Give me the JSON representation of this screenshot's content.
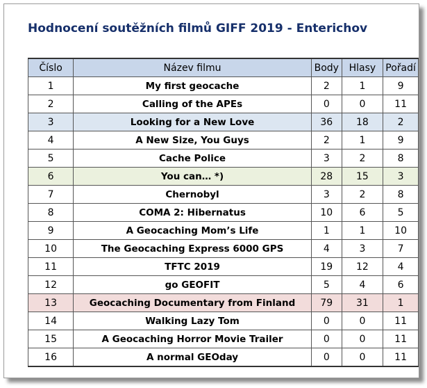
{
  "title": "Hodnocení soutěžních filmů GIFF 2019 - Enterichov",
  "table": {
    "headers": [
      "Číslo",
      "Název filmu",
      "Body",
      "Hlasy",
      "Pořadí"
    ],
    "rows": [
      {
        "cislo": "1",
        "nazev": "My first geocache",
        "body": "2",
        "hlasy": "1",
        "poradi": "9",
        "highlight": ""
      },
      {
        "cislo": "2",
        "nazev": "Calling of the APEs",
        "body": "0",
        "hlasy": "0",
        "poradi": "11",
        "highlight": ""
      },
      {
        "cislo": "3",
        "nazev": "Looking for a New Love",
        "body": "36",
        "hlasy": "18",
        "poradi": "2",
        "highlight": "blue"
      },
      {
        "cislo": "4",
        "nazev": "A New Size, You Guys",
        "body": "2",
        "hlasy": "1",
        "poradi": "9",
        "highlight": ""
      },
      {
        "cislo": "5",
        "nazev": "Cache Police",
        "body": "3",
        "hlasy": "2",
        "poradi": "8",
        "highlight": ""
      },
      {
        "cislo": "6",
        "nazev": "You can… *)",
        "body": "28",
        "hlasy": "15",
        "poradi": "3",
        "highlight": "green"
      },
      {
        "cislo": "7",
        "nazev": "Chernobyl",
        "body": "3",
        "hlasy": "2",
        "poradi": "8",
        "highlight": ""
      },
      {
        "cislo": "8",
        "nazev": "COMA 2: Hibernatus",
        "body": "10",
        "hlasy": "6",
        "poradi": "5",
        "highlight": ""
      },
      {
        "cislo": "9",
        "nazev": "A Geocaching Mom’s Life",
        "body": "1",
        "hlasy": "1",
        "poradi": "10",
        "highlight": ""
      },
      {
        "cislo": "10",
        "nazev": "The Geocaching Express 6000 GPS",
        "body": "4",
        "hlasy": "3",
        "poradi": "7",
        "highlight": ""
      },
      {
        "cislo": "11",
        "nazev": "TFTC 2019",
        "body": "19",
        "hlasy": "12",
        "poradi": "4",
        "highlight": ""
      },
      {
        "cislo": "12",
        "nazev": "go GEOFIT",
        "body": "5",
        "hlasy": "4",
        "poradi": "6",
        "highlight": ""
      },
      {
        "cislo": "13",
        "nazev": "Geocaching Documentary from Finland",
        "body": "79",
        "hlasy": "31",
        "poradi": "1",
        "highlight": "pink"
      },
      {
        "cislo": "14",
        "nazev": "Walking Lazy Tom",
        "body": "0",
        "hlasy": "0",
        "poradi": "11",
        "highlight": ""
      },
      {
        "cislo": "15",
        "nazev": "A Geocaching Horror Movie Trailer",
        "body": "0",
        "hlasy": "0",
        "poradi": "11",
        "highlight": ""
      },
      {
        "cislo": "16",
        "nazev": "A normal GEOday",
        "body": "0",
        "hlasy": "0",
        "poradi": "11",
        "highlight": ""
      }
    ]
  },
  "colors": {
    "title": "#17306b",
    "header_bg": "#c8d6ea",
    "highlight_blue": "#dce6f1",
    "highlight_green": "#ebf1de",
    "highlight_pink": "#f2dcdb"
  }
}
